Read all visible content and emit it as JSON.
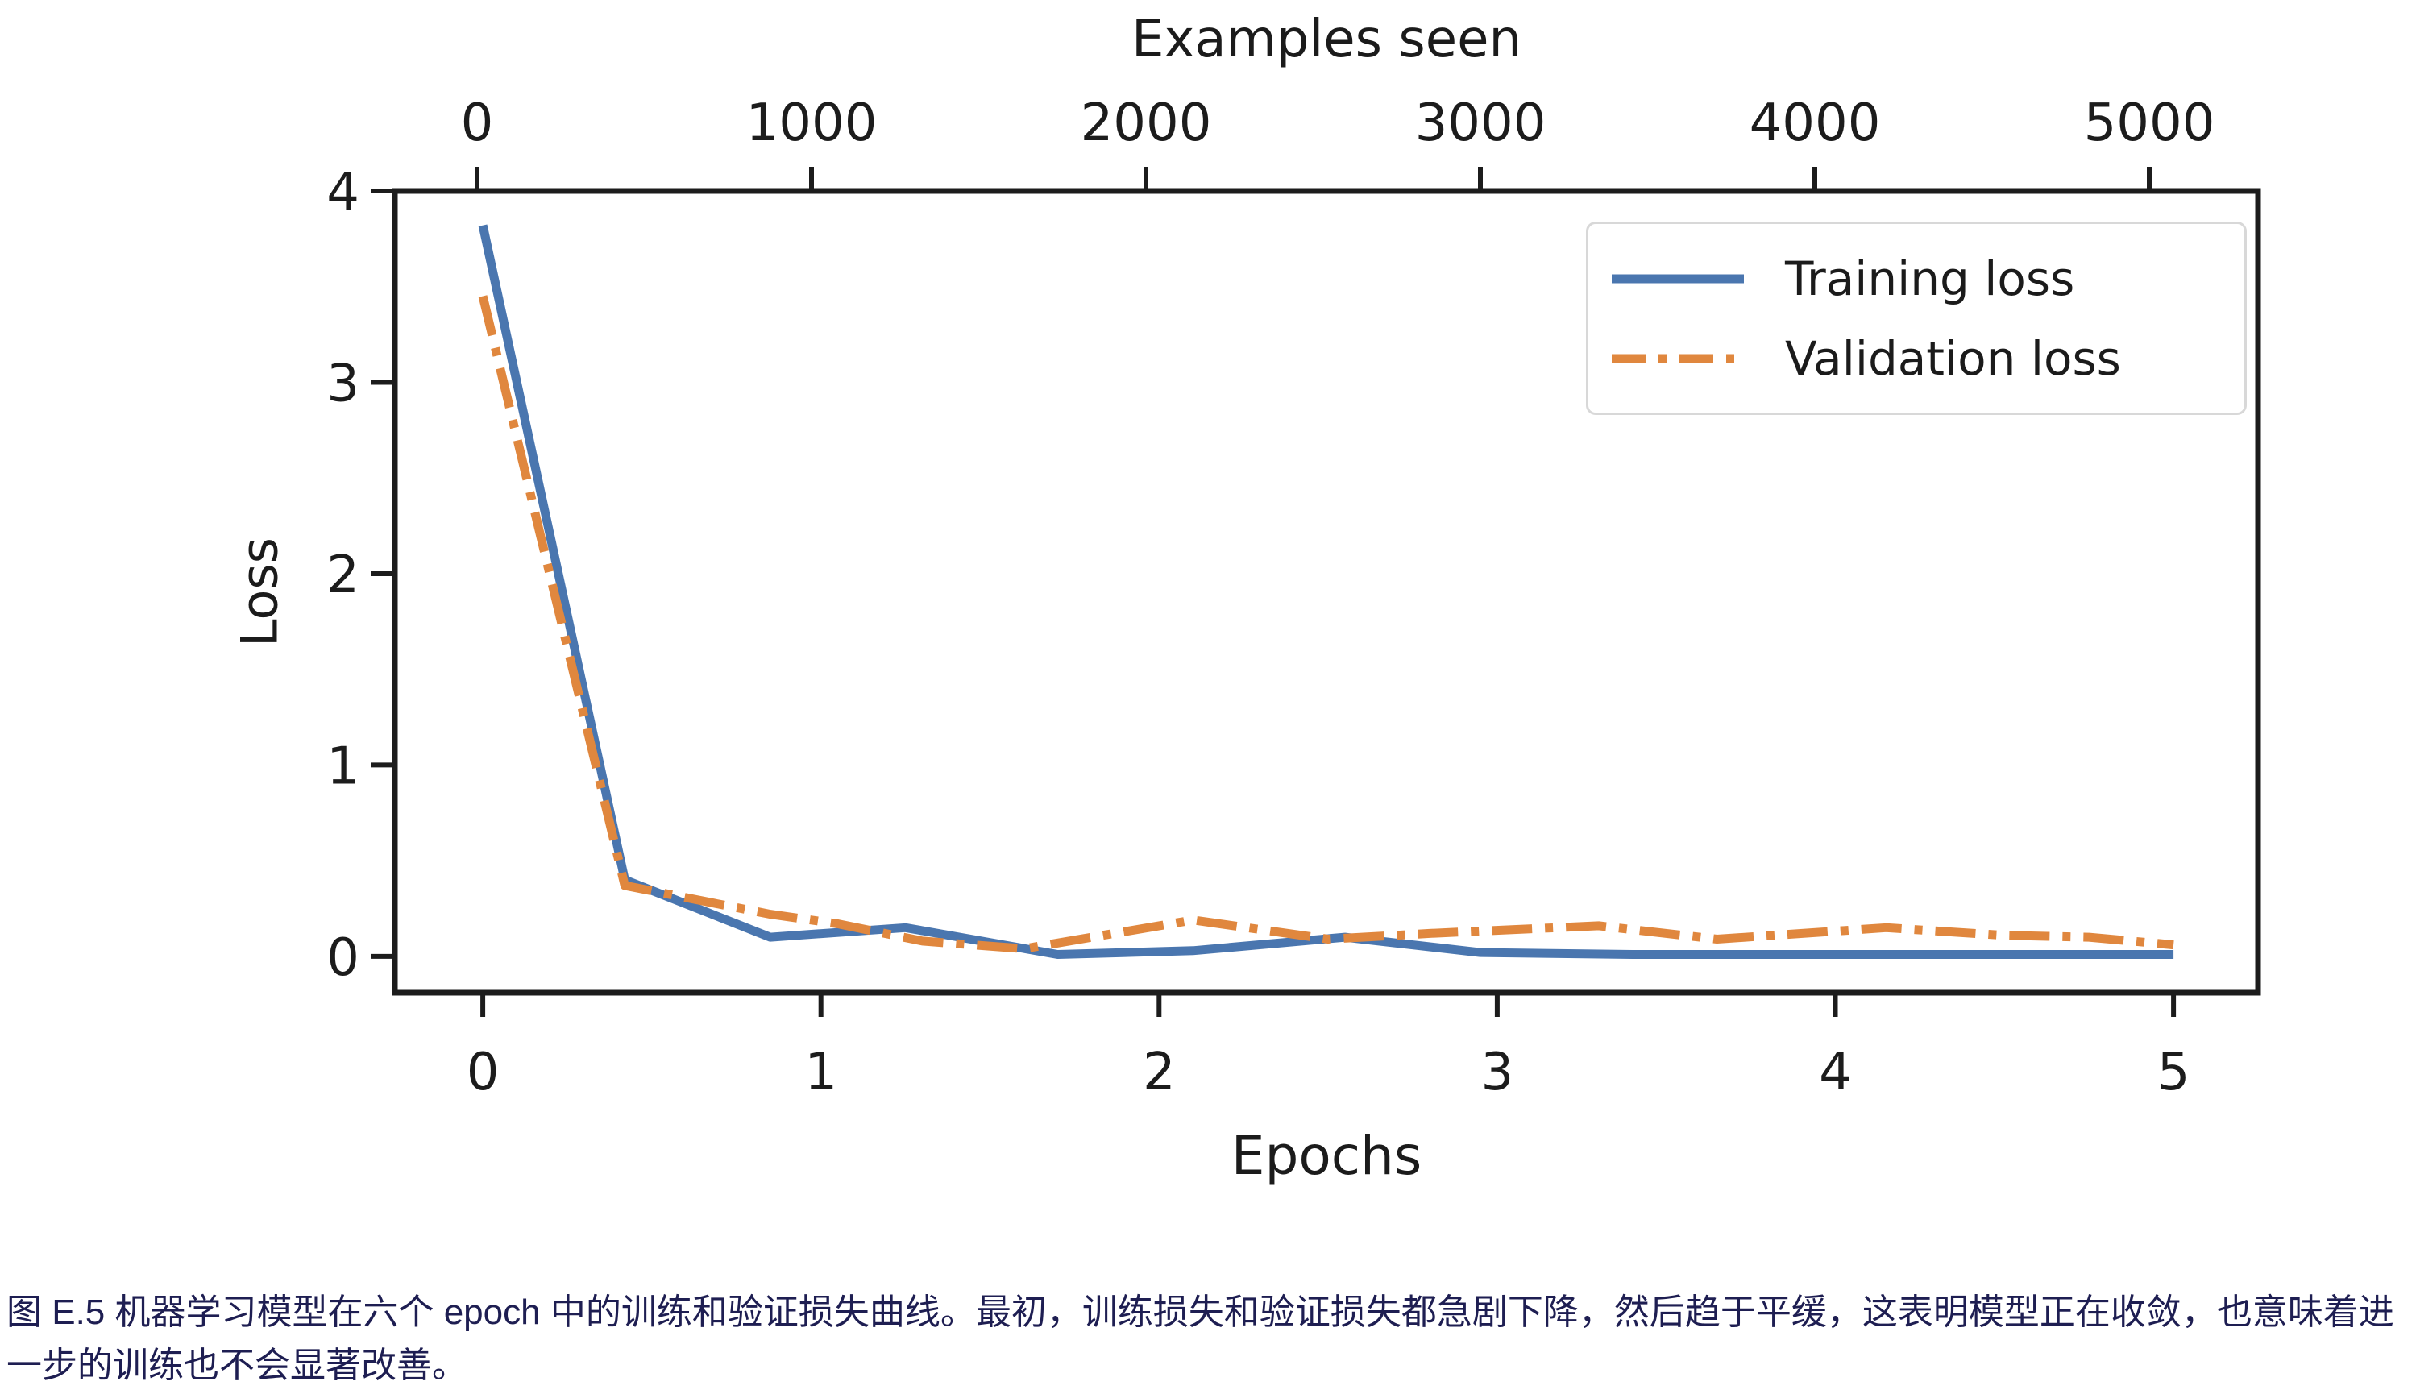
{
  "chart_data": {
    "type": "line",
    "top_axis_title": "Examples seen",
    "xlabel": "Epochs",
    "ylabel": "Loss",
    "x_ticks": [
      0,
      1,
      2,
      3,
      4,
      5
    ],
    "y_ticks": [
      0,
      1,
      2,
      3,
      4
    ],
    "top_ticks": [
      0,
      1000,
      2000,
      3000,
      4000,
      5000
    ],
    "xlim": [
      -0.26,
      5.25
    ],
    "ylim": [
      -0.19,
      4.0
    ],
    "grid": false,
    "legend_position": "upper right",
    "axis_color": "#1c1c1c",
    "series": [
      {
        "name": "Training loss",
        "color": "#4a76af",
        "style": "solid",
        "x": [
          0,
          0.42,
          0.85,
          1.25,
          1.7,
          2.1,
          2.55,
          2.95,
          3.4,
          3.85,
          4.3,
          4.7,
          5.0
        ],
        "y": [
          3.82,
          0.4,
          0.1,
          0.15,
          0.01,
          0.03,
          0.1,
          0.02,
          0.01,
          0.01,
          0.01,
          0.01,
          0.01
        ]
      },
      {
        "name": "Validation loss",
        "color": "#e0873e",
        "style": "dash-dot",
        "x": [
          0,
          0.42,
          0.85,
          1.05,
          1.3,
          1.6,
          2.1,
          2.5,
          2.8,
          3.3,
          3.65,
          4.15,
          4.5,
          4.75,
          5.0
        ],
        "y": [
          3.45,
          0.37,
          0.22,
          0.17,
          0.08,
          0.04,
          0.19,
          0.09,
          0.12,
          0.16,
          0.09,
          0.15,
          0.11,
          0.1,
          0.06
        ]
      }
    ]
  },
  "caption": {
    "text": "图 E.5 机器学习模型在六个 epoch 中的训练和验证损失曲线。最初，训练损失和验证损失都急剧下降，然后趋于平缓，这表明模型正在收敛，也意味着进一步的训练也不会显著改善。",
    "color": "#1e1e52"
  }
}
